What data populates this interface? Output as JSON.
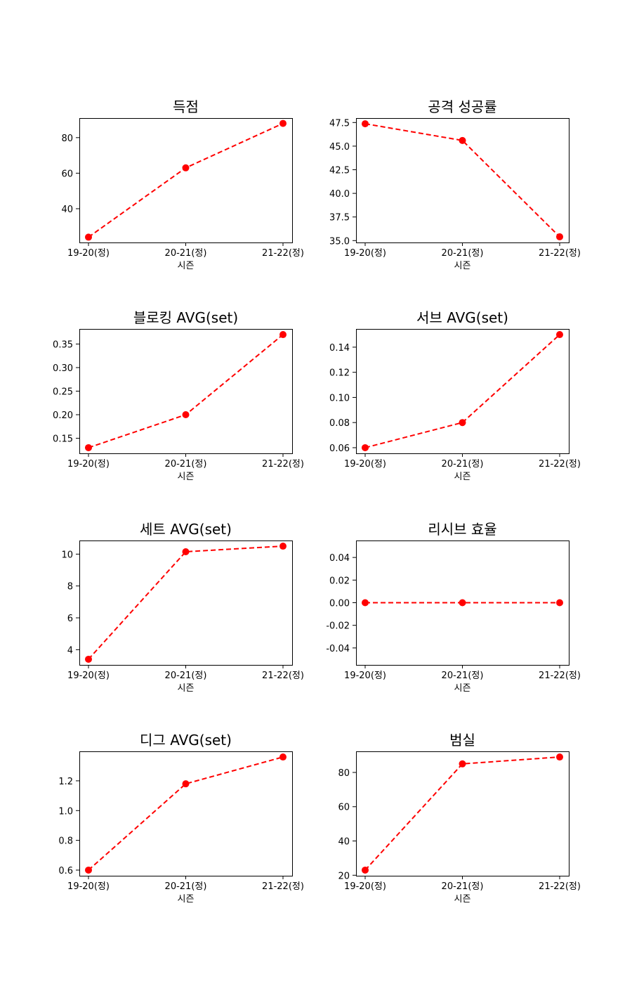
{
  "chart_data": [
    {
      "type": "line",
      "title": "득점",
      "xlabel": "시즌",
      "categories": [
        "19-20(정)",
        "20-21(정)",
        "21-22(정)"
      ],
      "values": [
        24,
        63,
        88
      ],
      "ylim": [
        21,
        91
      ],
      "yticks": [
        40,
        60,
        80
      ],
      "ytick_labels": [
        "40",
        "60",
        "80"
      ],
      "color": "#ff0000",
      "line_style": "dashed",
      "marker": "circle"
    },
    {
      "type": "line",
      "title": "공격 성공률",
      "xlabel": "시즌",
      "categories": [
        "19-20(정)",
        "20-21(정)",
        "21-22(정)"
      ],
      "values": [
        47.37,
        45.6,
        35.4
      ],
      "ylim": [
        34.8,
        47.97
      ],
      "yticks": [
        35.0,
        37.5,
        40.0,
        42.5,
        45.0,
        47.5
      ],
      "ytick_labels": [
        "35.0",
        "37.5",
        "40.0",
        "42.5",
        "45.0",
        "47.5"
      ],
      "color": "#ff0000",
      "line_style": "dashed",
      "marker": "circle"
    },
    {
      "type": "line",
      "title": "블로킹 AVG(set)",
      "xlabel": "시즌",
      "categories": [
        "19-20(정)",
        "20-21(정)",
        "21-22(정)"
      ],
      "values": [
        0.13,
        0.2,
        0.37
      ],
      "ylim": [
        0.118,
        0.382
      ],
      "yticks": [
        0.15,
        0.2,
        0.25,
        0.3,
        0.35
      ],
      "ytick_labels": [
        "0.15",
        "0.20",
        "0.25",
        "0.30",
        "0.35"
      ],
      "color": "#ff0000",
      "line_style": "dashed",
      "marker": "circle"
    },
    {
      "type": "line",
      "title": "서브 AVG(set)",
      "xlabel": "시즌",
      "categories": [
        "19-20(정)",
        "20-21(정)",
        "21-22(정)"
      ],
      "values": [
        0.06,
        0.08,
        0.15
      ],
      "ylim": [
        0.0555,
        0.1545
      ],
      "yticks": [
        0.06,
        0.08,
        0.1,
        0.12,
        0.14
      ],
      "ytick_labels": [
        "0.06",
        "0.08",
        "0.10",
        "0.12",
        "0.14"
      ],
      "color": "#ff0000",
      "line_style": "dashed",
      "marker": "circle"
    },
    {
      "type": "line",
      "title": "세트 AVG(set)",
      "xlabel": "시즌",
      "categories": [
        "19-20(정)",
        "20-21(정)",
        "21-22(정)"
      ],
      "values": [
        3.4,
        10.15,
        10.5
      ],
      "ylim": [
        3.045,
        10.855
      ],
      "yticks": [
        4,
        6,
        8,
        10
      ],
      "ytick_labels": [
        "4",
        "6",
        "8",
        "10"
      ],
      "color": "#ff0000",
      "line_style": "dashed",
      "marker": "circle"
    },
    {
      "type": "line",
      "title": "리시브 효율",
      "xlabel": "시즌",
      "categories": [
        "19-20(정)",
        "20-21(정)",
        "21-22(정)"
      ],
      "values": [
        0.0,
        0.0,
        0.0
      ],
      "ylim": [
        -0.055,
        0.055
      ],
      "yticks": [
        -0.04,
        -0.02,
        0.0,
        0.02,
        0.04
      ],
      "ytick_labels": [
        "-0.04",
        "-0.02",
        "0.00",
        "0.02",
        "0.04"
      ],
      "color": "#ff0000",
      "line_style": "dashed",
      "marker": "circle"
    },
    {
      "type": "line",
      "title": "디그 AVG(set)",
      "xlabel": "시즌",
      "categories": [
        "19-20(정)",
        "20-21(정)",
        "21-22(정)"
      ],
      "values": [
        0.6,
        1.18,
        1.36
      ],
      "ylim": [
        0.562,
        1.398
      ],
      "yticks": [
        0.6,
        0.8,
        1.0,
        1.2
      ],
      "ytick_labels": [
        "0.6",
        "0.8",
        "1.0",
        "1.2"
      ],
      "color": "#ff0000",
      "line_style": "dashed",
      "marker": "circle"
    },
    {
      "type": "line",
      "title": "범실",
      "xlabel": "시즌",
      "categories": [
        "19-20(정)",
        "20-21(정)",
        "21-22(정)"
      ],
      "values": [
        23,
        85,
        89
      ],
      "ylim": [
        19.7,
        92.3
      ],
      "yticks": [
        20,
        40,
        60,
        80
      ],
      "ytick_labels": [
        "20",
        "40",
        "60",
        "80"
      ],
      "color": "#ff0000",
      "line_style": "dashed",
      "marker": "circle"
    }
  ]
}
